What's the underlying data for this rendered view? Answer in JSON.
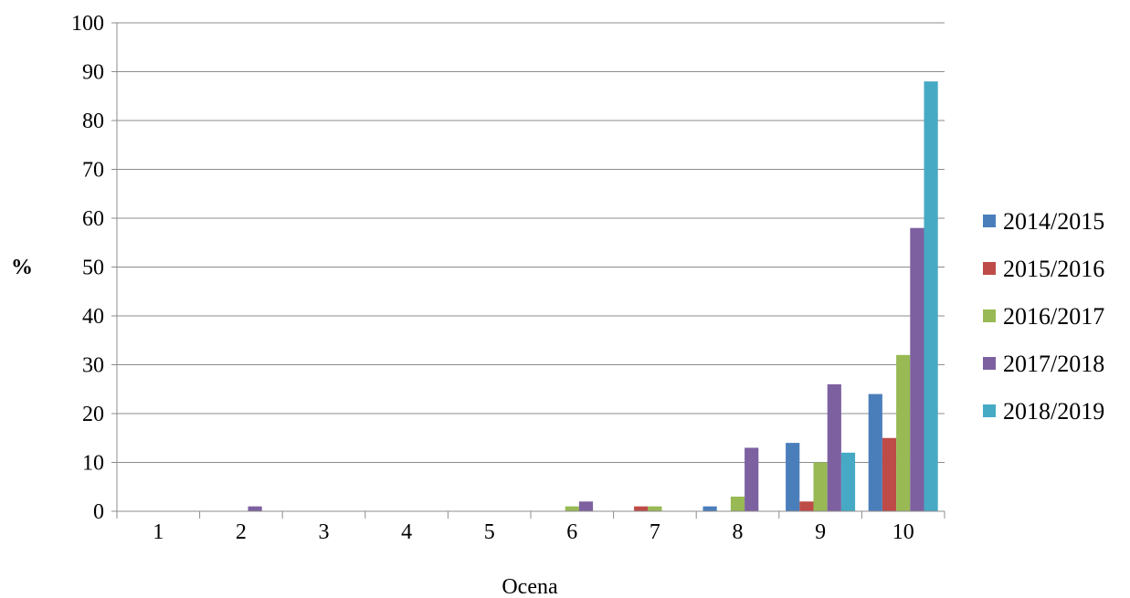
{
  "chart_data": {
    "type": "bar",
    "title": "",
    "xlabel": "Ocena",
    "ylabel": "%",
    "ylim": [
      0,
      100
    ],
    "yticks": [
      0,
      10,
      20,
      30,
      40,
      50,
      60,
      70,
      80,
      90,
      100
    ],
    "grid": true,
    "legend_position": "right",
    "categories": [
      "1",
      "2",
      "3",
      "4",
      "5",
      "6",
      "7",
      "8",
      "9",
      "10"
    ],
    "series": [
      {
        "name": "2014/2015",
        "color": "#4a7ebb",
        "values": [
          0,
          0,
          0,
          0,
          0,
          0,
          0,
          1,
          14,
          24
        ]
      },
      {
        "name": "2015/2016",
        "color": "#be4b48",
        "values": [
          0,
          0,
          0,
          0,
          0,
          0,
          1,
          0,
          2,
          15
        ]
      },
      {
        "name": "2016/2017",
        "color": "#98b954",
        "values": [
          0,
          0,
          0,
          0,
          0,
          1,
          1,
          3,
          10,
          32
        ]
      },
      {
        "name": "2017/2018",
        "color": "#7d60a0",
        "values": [
          0,
          1,
          0,
          0,
          0,
          2,
          0,
          13,
          26,
          58
        ]
      },
      {
        "name": "2018/2019",
        "color": "#46aac5",
        "values": [
          0,
          0,
          0,
          0,
          0,
          0,
          0,
          0,
          12,
          88
        ]
      }
    ]
  }
}
